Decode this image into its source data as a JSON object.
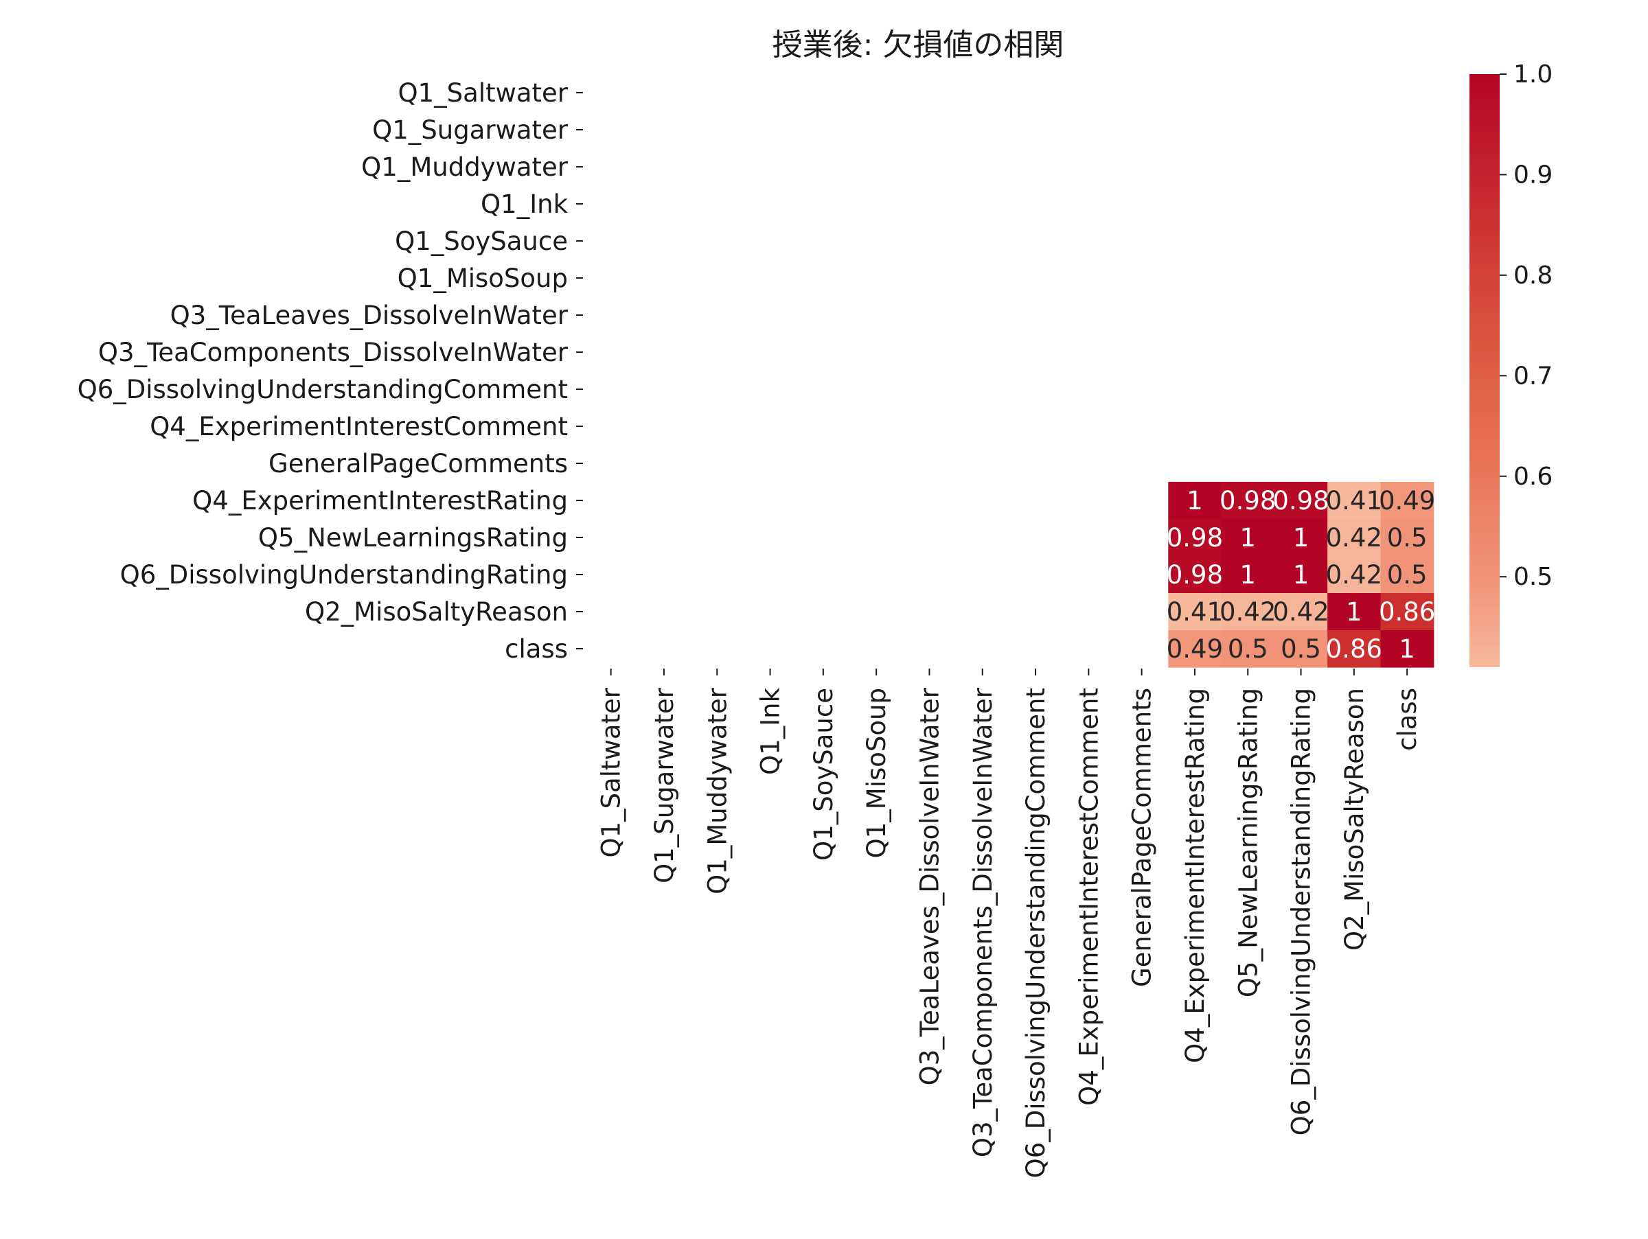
{
  "chart_data": {
    "type": "heatmap",
    "title": "授業後: 欠損値の相関",
    "xlabel": "",
    "ylabel": "",
    "labels": [
      "Q1_Saltwater",
      "Q1_Sugarwater",
      "Q1_Muddywater",
      "Q1_Ink",
      "Q1_SoySauce",
      "Q1_MisoSoup",
      "Q3_TeaLeaves_DissolveInWater",
      "Q3_TeaComponents_DissolveInWater",
      "Q6_DissolvingUnderstandingComment",
      "Q4_ExperimentInterestComment",
      "GeneralPageComments",
      "Q4_ExperimentInterestRating",
      "Q5_NewLearningsRating",
      "Q6_DissolvingUnderstandingRating",
      "Q2_MisoSaltyReason",
      "class"
    ],
    "matrix": [
      [
        null,
        null,
        null,
        null,
        null,
        null,
        null,
        null,
        null,
        null,
        null,
        null,
        null,
        null,
        null,
        null
      ],
      [
        null,
        null,
        null,
        null,
        null,
        null,
        null,
        null,
        null,
        null,
        null,
        null,
        null,
        null,
        null,
        null
      ],
      [
        null,
        null,
        null,
        null,
        null,
        null,
        null,
        null,
        null,
        null,
        null,
        null,
        null,
        null,
        null,
        null
      ],
      [
        null,
        null,
        null,
        null,
        null,
        null,
        null,
        null,
        null,
        null,
        null,
        null,
        null,
        null,
        null,
        null
      ],
      [
        null,
        null,
        null,
        null,
        null,
        null,
        null,
        null,
        null,
        null,
        null,
        null,
        null,
        null,
        null,
        null
      ],
      [
        null,
        null,
        null,
        null,
        null,
        null,
        null,
        null,
        null,
        null,
        null,
        null,
        null,
        null,
        null,
        null
      ],
      [
        null,
        null,
        null,
        null,
        null,
        null,
        null,
        null,
        null,
        null,
        null,
        null,
        null,
        null,
        null,
        null
      ],
      [
        null,
        null,
        null,
        null,
        null,
        null,
        null,
        null,
        null,
        null,
        null,
        null,
        null,
        null,
        null,
        null
      ],
      [
        null,
        null,
        null,
        null,
        null,
        null,
        null,
        null,
        null,
        null,
        null,
        null,
        null,
        null,
        null,
        null
      ],
      [
        null,
        null,
        null,
        null,
        null,
        null,
        null,
        null,
        null,
        null,
        null,
        null,
        null,
        null,
        null,
        null
      ],
      [
        null,
        null,
        null,
        null,
        null,
        null,
        null,
        null,
        null,
        null,
        null,
        null,
        null,
        null,
        null,
        null
      ],
      [
        null,
        null,
        null,
        null,
        null,
        null,
        null,
        null,
        null,
        null,
        null,
        1,
        0.98,
        0.98,
        0.41,
        0.49
      ],
      [
        null,
        null,
        null,
        null,
        null,
        null,
        null,
        null,
        null,
        null,
        null,
        0.98,
        1,
        1,
        0.42,
        0.5
      ],
      [
        null,
        null,
        null,
        null,
        null,
        null,
        null,
        null,
        null,
        null,
        null,
        0.98,
        1,
        1,
        0.42,
        0.5
      ],
      [
        null,
        null,
        null,
        null,
        null,
        null,
        null,
        null,
        null,
        null,
        null,
        0.41,
        0.42,
        0.42,
        1,
        0.86
      ],
      [
        null,
        null,
        null,
        null,
        null,
        null,
        null,
        null,
        null,
        null,
        null,
        0.49,
        0.5,
        0.5,
        0.86,
        1
      ]
    ],
    "annotations": [
      [
        "",
        "",
        "",
        "",
        "",
        "",
        "",
        "",
        "",
        "",
        "",
        "",
        "",
        "",
        "",
        ""
      ],
      [
        "",
        "",
        "",
        "",
        "",
        "",
        "",
        "",
        "",
        "",
        "",
        "",
        "",
        "",
        "",
        ""
      ],
      [
        "",
        "",
        "",
        "",
        "",
        "",
        "",
        "",
        "",
        "",
        "",
        "",
        "",
        "",
        "",
        ""
      ],
      [
        "",
        "",
        "",
        "",
        "",
        "",
        "",
        "",
        "",
        "",
        "",
        "",
        "",
        "",
        "",
        ""
      ],
      [
        "",
        "",
        "",
        "",
        "",
        "",
        "",
        "",
        "",
        "",
        "",
        "",
        "",
        "",
        "",
        ""
      ],
      [
        "",
        "",
        "",
        "",
        "",
        "",
        "",
        "",
        "",
        "",
        "",
        "",
        "",
        "",
        "",
        ""
      ],
      [
        "",
        "",
        "",
        "",
        "",
        "",
        "",
        "",
        "",
        "",
        "",
        "",
        "",
        "",
        "",
        ""
      ],
      [
        "",
        "",
        "",
        "",
        "",
        "",
        "",
        "",
        "",
        "",
        "",
        "",
        "",
        "",
        "",
        ""
      ],
      [
        "",
        "",
        "",
        "",
        "",
        "",
        "",
        "",
        "",
        "",
        "",
        "",
        "",
        "",
        "",
        ""
      ],
      [
        "",
        "",
        "",
        "",
        "",
        "",
        "",
        "",
        "",
        "",
        "",
        "",
        "",
        "",
        "",
        ""
      ],
      [
        "",
        "",
        "",
        "",
        "",
        "",
        "",
        "",
        "",
        "",
        "",
        "",
        "",
        "",
        "",
        ""
      ],
      [
        "",
        "",
        "",
        "",
        "",
        "",
        "",
        "",
        "",
        "",
        "",
        "1",
        "0.98",
        "0.98",
        "0.41",
        "0.49"
      ],
      [
        "",
        "",
        "",
        "",
        "",
        "",
        "",
        "",
        "",
        "",
        "",
        "0.98",
        "1",
        "1",
        "0.42",
        "0.5"
      ],
      [
        "",
        "",
        "",
        "",
        "",
        "",
        "",
        "",
        "",
        "",
        "",
        "0.98",
        "1",
        "1",
        "0.42",
        "0.5"
      ],
      [
        "",
        "",
        "",
        "",
        "",
        "",
        "",
        "",
        "",
        "",
        "",
        "0.41",
        "0.42",
        "0.42",
        "1",
        "0.86"
      ],
      [
        "",
        "",
        "",
        "",
        "",
        "",
        "",
        "",
        "",
        "",
        "",
        "0.49",
        "0.5",
        "0.5",
        "0.86",
        "1"
      ]
    ],
    "colorbar": {
      "range": [
        0.41,
        1.0
      ],
      "ticks": [
        "0.5",
        "0.6",
        "0.7",
        "0.8",
        "0.9",
        "1.0"
      ],
      "colormap": "coolwarm (upper half)",
      "color_low": "#f7b89c",
      "color_high": "#b40426"
    },
    "grid": false,
    "legend": "colorbar at right"
  }
}
